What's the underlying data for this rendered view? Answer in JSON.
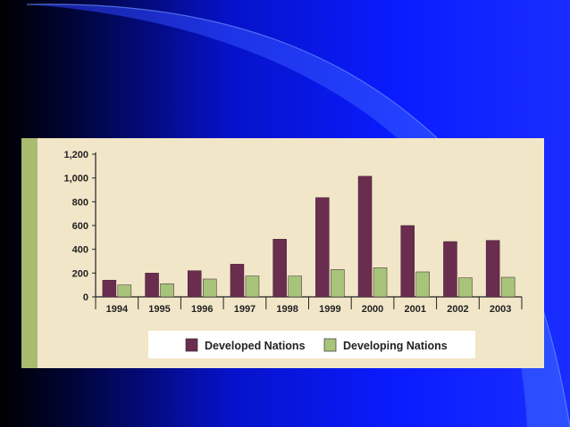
{
  "colors": {
    "slide_background": "#0a1aff",
    "panel_background": "#f2e6c8",
    "accent_stripe": "#a9bb6f",
    "developed": "#6b2d4f",
    "developing": "#a8c47a"
  },
  "legend": {
    "developed_label": "Developed Nations",
    "developing_label": "Developing Nations"
  },
  "chart_data": {
    "type": "bar",
    "categories": [
      "1994",
      "1995",
      "1996",
      "1997",
      "1998",
      "1999",
      "2000",
      "2001",
      "2002",
      "2003"
    ],
    "series": [
      {
        "name": "Developed Nations",
        "color": "#6b2d4f",
        "values": [
          140,
          200,
          220,
          275,
          485,
          835,
          1015,
          600,
          465,
          475
        ]
      },
      {
        "name": "Developing Nations",
        "color": "#a8c47a",
        "values": [
          100,
          110,
          150,
          175,
          175,
          230,
          245,
          210,
          160,
          165
        ]
      }
    ],
    "yticks": [
      "0",
      "200",
      "400",
      "600",
      "800",
      "1,000",
      "1,200"
    ],
    "ylim": [
      0,
      1200
    ],
    "grid": false,
    "legend_position": "bottom",
    "title": "",
    "xlabel": "",
    "ylabel": ""
  }
}
